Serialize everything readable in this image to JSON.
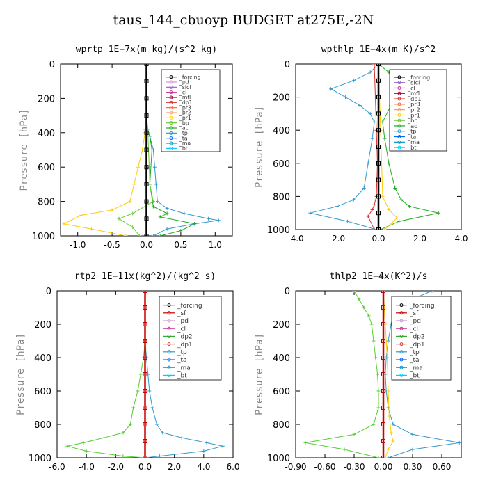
{
  "title": "taus_144_cbuoyp  BUDGET at275E,-2N",
  "chart_data": [
    {
      "type": "line",
      "subtitle": "wprtp   1E−7x(m kg)/(s^2 kg)",
      "ylabel": "Pressure [hPa]",
      "xlim": [
        -1.25,
        1.25
      ],
      "ylim": [
        1000,
        0
      ],
      "x_ticks": [
        "-1.0",
        "-0.5",
        "0.0",
        "0.5",
        "1.0"
      ],
      "x_tick_values": [
        -1.0,
        -0.5,
        0.0,
        0.5,
        1.0
      ],
      "y_ticks": [
        "0",
        "200",
        "400",
        "600",
        "800",
        "1000"
      ],
      "y_tick_values": [
        0,
        200,
        400,
        600,
        800,
        1000
      ],
      "legend": [
        "_forcing",
        "_pd",
        "_sicl",
        "_cl",
        "_mfl",
        "_dp1",
        "_pr3",
        "_pr2",
        "_pr1",
        "_bp",
        "_ac",
        "_tp",
        "_ta",
        "_ma",
        "_bt"
      ],
      "series": [
        {
          "name": "_tp",
          "color": "#3399cc",
          "x": [
            0,
            0,
            0.02,
            0.05,
            0.1,
            0.12,
            0.14,
            0.16,
            0.3,
            0.55,
            0.9,
            1.05,
            0.7,
            0.3,
            0.1
          ],
          "y": [
            0,
            300,
            380,
            420,
            500,
            600,
            700,
            800,
            840,
            870,
            900,
            910,
            930,
            960,
            1000
          ]
        },
        {
          "name": "_ac",
          "color": "#22aa22",
          "x": [
            0,
            0,
            -0.02,
            0.05,
            0.08,
            0.05,
            0.1,
            0.3,
            0.2,
            0.7,
            0.5,
            0.2
          ],
          "y": [
            0,
            300,
            380,
            420,
            500,
            700,
            830,
            870,
            890,
            930,
            970,
            1000
          ]
        },
        {
          "name": "_pr1",
          "color": "#ffcc00",
          "x": [
            0,
            0,
            -0.02,
            -0.06,
            -0.12,
            -0.18,
            -0.24,
            -0.5,
            -0.95,
            -1.2,
            -0.8,
            -0.3
          ],
          "y": [
            0,
            300,
            400,
            500,
            600,
            700,
            800,
            850,
            880,
            930,
            960,
            1000
          ]
        },
        {
          "name": "_bp",
          "color": "#66cc33",
          "x": [
            0,
            0,
            0.02,
            0.03,
            0.04,
            0.05,
            0.1,
            -0.2,
            -0.4,
            -0.2,
            -0.1
          ],
          "y": [
            0,
            300,
            400,
            500,
            600,
            700,
            800,
            870,
            900,
            950,
            1000
          ]
        },
        {
          "name": "_forcing",
          "color": "#000000",
          "x": [
            0,
            0,
            0,
            0,
            0,
            0,
            0,
            0,
            0,
            0,
            0
          ],
          "y": [
            0,
            100,
            200,
            300,
            400,
            500,
            600,
            700,
            800,
            900,
            1000
          ]
        }
      ]
    },
    {
      "type": "line",
      "subtitle": "wpthlp   1E−4x(m K)/s^2",
      "ylabel": "Pressure [hPa]",
      "xlim": [
        -4,
        4
      ],
      "ylim": [
        1000,
        0
      ],
      "x_ticks": [
        "-4.0",
        "-2.0",
        "0.0",
        "2.0",
        "4.0"
      ],
      "x_tick_values": [
        -4,
        -2,
        0,
        2,
        4
      ],
      "y_ticks": [
        "0",
        "200",
        "400",
        "600",
        "800",
        "1000"
      ],
      "y_tick_values": [
        0,
        200,
        400,
        600,
        800,
        1000
      ],
      "legend": [
        "_forcing",
        "_sicl",
        "_cl",
        "_mfl",
        "_dp1",
        "_pr3",
        "_pr2",
        "_pr1",
        "_bp",
        "_ac",
        "_tp",
        "_ta",
        "_ma",
        "_bt"
      ],
      "series": [
        {
          "name": "_tp",
          "color": "#3399cc",
          "x": [
            0,
            -0.4,
            -1.2,
            -2.3,
            -1.6,
            -0.9,
            -0.4,
            -0.2,
            -0.3,
            -0.5,
            -0.7,
            -1.2,
            -2.0,
            -3.3,
            -1.5,
            -0.1
          ],
          "y": [
            0,
            50,
            100,
            150,
            200,
            250,
            300,
            350,
            450,
            600,
            750,
            820,
            860,
            900,
            950,
            1000
          ]
        },
        {
          "name": "_ac",
          "color": "#22aa22",
          "x": [
            0,
            0.5,
            1.1,
            2.0,
            1.2,
            0.6,
            0.2,
            0.3,
            0.5,
            0.8,
            1.1,
            1.5,
            2.9,
            1.0,
            0.1
          ],
          "y": [
            0,
            50,
            100,
            150,
            200,
            250,
            350,
            450,
            600,
            750,
            820,
            860,
            900,
            950,
            1000
          ]
        },
        {
          "name": "_pr1",
          "color": "#ffcc00",
          "x": [
            0,
            0.05,
            0.1,
            0.15,
            0.2,
            0.5,
            0.9,
            0.3
          ],
          "y": [
            0,
            200,
            400,
            600,
            800,
            880,
            930,
            1000
          ]
        },
        {
          "name": "_dp1",
          "color": "#dd3333",
          "x": [
            -0.2,
            -0.15,
            -0.1,
            -0.05,
            -0.1,
            -0.2,
            -0.3,
            -0.5,
            -0.2
          ],
          "y": [
            0,
            200,
            400,
            600,
            800,
            850,
            880,
            920,
            1000
          ]
        },
        {
          "name": "_forcing",
          "color": "#000000",
          "x": [
            0,
            0,
            0,
            0,
            0,
            0,
            0,
            0,
            0,
            0,
            0
          ],
          "y": [
            0,
            100,
            200,
            300,
            400,
            500,
            600,
            700,
            800,
            900,
            1000
          ]
        }
      ]
    },
    {
      "type": "line",
      "subtitle": "rtp2   1E−11x(kg^2)/(kg^2 s)",
      "ylabel": "Pressure [hPa]",
      "xlim": [
        -6,
        6
      ],
      "ylim": [
        1000,
        0
      ],
      "x_ticks": [
        "-6.0",
        "-4.0",
        "-2.0",
        "0.0",
        "2.0",
        "4.0",
        "6.0"
      ],
      "x_tick_values": [
        -6,
        -4,
        -2,
        0,
        2,
        4,
        6
      ],
      "y_ticks": [
        "0",
        "200",
        "400",
        "600",
        "800",
        "1000"
      ],
      "y_tick_values": [
        0,
        200,
        400,
        600,
        800,
        1000
      ],
      "legend": [
        "_forcing",
        "_sf",
        "_pd",
        "_cl",
        "_dp2",
        "_dp1",
        "_tp",
        "_ta",
        "_ma",
        "_bt"
      ],
      "series": [
        {
          "name": "_tp",
          "color": "#3399cc",
          "x": [
            0,
            0,
            0.1,
            0.2,
            0.3,
            0.5,
            0.8,
            1.2,
            2.5,
            4.2,
            5.3,
            4.0,
            1.0,
            0
          ],
          "y": [
            0,
            300,
            400,
            500,
            600,
            700,
            800,
            850,
            880,
            910,
            930,
            960,
            990,
            1000
          ]
        },
        {
          "name": "_dp1",
          "color": "#55cc33",
          "x": [
            0,
            0,
            -0.1,
            -0.3,
            -0.5,
            -0.8,
            -1.0,
            -1.5,
            -2.8,
            -4.2,
            -5.3,
            -4.0,
            -1.5,
            0
          ],
          "y": [
            0,
            300,
            400,
            500,
            600,
            700,
            800,
            850,
            880,
            910,
            930,
            960,
            990,
            1000
          ]
        },
        {
          "name": "_forcing",
          "color": "#cc0000",
          "x": [
            0,
            0,
            0,
            0,
            0,
            0,
            0,
            0,
            0,
            0,
            0
          ],
          "y": [
            0,
            100,
            200,
            300,
            400,
            500,
            600,
            700,
            800,
            900,
            1000
          ]
        }
      ]
    },
    {
      "type": "line",
      "subtitle": "thlp2   1E−4x(K^2)/s",
      "ylabel": "Pressure [hPa]",
      "xlim": [
        -0.9,
        0.8
      ],
      "ylim": [
        1000,
        0
      ],
      "x_ticks": [
        "-0.90",
        "-0.60",
        "-0.30",
        "0.00",
        "0.30",
        "0.60"
      ],
      "x_tick_values": [
        -0.9,
        -0.6,
        -0.3,
        0.0,
        0.3,
        0.6
      ],
      "y_ticks": [
        "0",
        "200",
        "400",
        "600",
        "800",
        "1000"
      ],
      "y_tick_values": [
        0,
        200,
        400,
        600,
        800,
        1000
      ],
      "legend": [
        "_forcing",
        "_sf",
        "_pd",
        "_cl",
        "_dp2",
        "_dp1",
        "_tp",
        "_ta",
        "_ma",
        "_bt"
      ],
      "series": [
        {
          "name": "_dp1",
          "color": "#55cc33",
          "x": [
            -0.3,
            -0.25,
            -0.2,
            -0.15,
            -0.12,
            -0.1,
            -0.08,
            -0.06,
            -0.05,
            -0.05,
            -0.1,
            -0.3,
            -0.8,
            -0.4,
            -0.05
          ],
          "y": [
            0,
            50,
            100,
            150,
            200,
            300,
            400,
            500,
            600,
            700,
            800,
            860,
            910,
            950,
            1000
          ]
        },
        {
          "name": "_tp",
          "color": "#3399cc",
          "x": [
            0.5,
            0.3,
            0.15,
            0.1,
            0.08,
            0.05,
            0.03,
            0.02,
            0.03,
            0.05,
            0.1,
            0.3,
            0.78,
            0.3,
            0.05
          ],
          "y": [
            0,
            50,
            100,
            150,
            200,
            300,
            400,
            500,
            600,
            700,
            800,
            860,
            910,
            950,
            1000
          ]
        },
        {
          "name": "_cl",
          "color": "#ffcc00",
          "x": [
            0,
            0.02,
            0.04,
            0.05,
            0.06,
            0.08,
            0.1,
            0.05,
            0.02
          ],
          "y": [
            0,
            200,
            400,
            600,
            750,
            850,
            900,
            950,
            1000
          ]
        },
        {
          "name": "_forcing",
          "color": "#cc0000",
          "x": [
            0,
            0,
            0,
            0,
            0,
            0,
            0,
            0,
            0,
            0,
            0
          ],
          "y": [
            0,
            100,
            200,
            300,
            400,
            500,
            600,
            700,
            800,
            900,
            1000
          ]
        }
      ]
    }
  ],
  "legend_colors": {
    "_forcing": "#000000",
    "_pd": "#cc99cc",
    "_sicl": "#9966cc",
    "_cl": "#cc3399",
    "_mfl": "#990033",
    "_dp1": "#dd3333",
    "_pr3": "#ff6633",
    "_pr2": "#ff9966",
    "_pr1": "#ffcc00",
    "_bp": "#66cc33",
    "_ac": "#22aa22",
    "_tp": "#3399cc",
    "_ta": "#0066ff",
    "_ma": "#0099cc",
    "_bt": "#00ccff",
    "_sf": "#cc0000",
    "_dp2": "#33aa33"
  }
}
